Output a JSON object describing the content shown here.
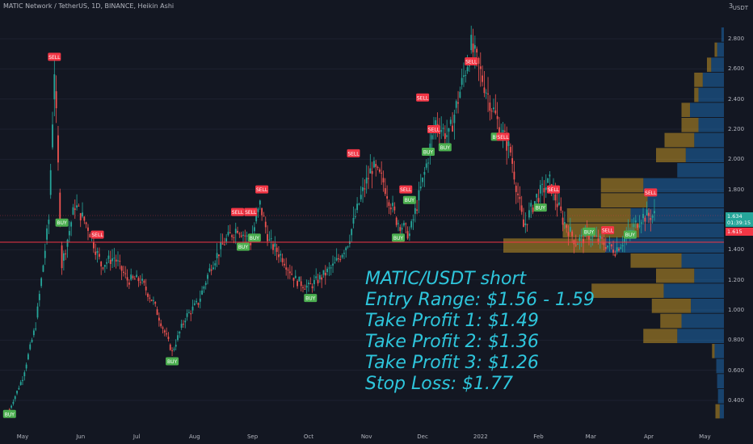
{
  "header": {
    "title": "MATIC Network / TetherUS, 1D, BINANCE, Heikin Ashi",
    "unit": "USDT",
    "top_value": "3"
  },
  "price_axis": {
    "ticks": [
      "2.800",
      "2.600",
      "2.400",
      "2.200",
      "2.000",
      "1.800",
      "1.600",
      "1.400",
      "1.200",
      "1.000",
      "0.800",
      "0.600",
      "0.400"
    ],
    "current_price": "1.634",
    "countdown": "01:39:15",
    "horizontal_level": "1.615"
  },
  "time_axis": {
    "ticks": [
      "May",
      "Jun",
      "Jul",
      "Aug",
      "Sep",
      "Oct",
      "Nov",
      "Dec",
      "2022",
      "Feb",
      "Mar",
      "Apr",
      "May"
    ]
  },
  "annotation": {
    "line1": "MATIC/USDT short",
    "line2": "Entry Range: $1.56 - 1.59",
    "line3": "Take Profit 1: $1.49",
    "line4": "Take Profit 2: $1.36",
    "line5": "Take Profit 3: $1.26",
    "line6": "Stop Loss: $1.77"
  },
  "colors": {
    "background": "#131722",
    "up": "#26a69a",
    "down": "#ef5350",
    "buy_label": "#4caf50",
    "sell_label": "#f23645",
    "vp_up": "#1e6fb8",
    "vp_down": "#d4a024",
    "annotation": "#2ec6dc",
    "level_line": "#f23645"
  },
  "chart_data": {
    "type": "candlestick",
    "title": "MATIC Network / TetherUS, 1D, BINANCE, Heikin Ashi",
    "y_unit": "USDT",
    "ylim": [
      0.25,
      3.0
    ],
    "x_range": [
      "2021-04-20",
      "2022-05-15"
    ],
    "candles_close_approx": [
      [
        "2021-04-24",
        0.34
      ],
      [
        "2021-05-01",
        0.55
      ],
      [
        "2021-05-08",
        0.9
      ],
      [
        "2021-05-15",
        1.6
      ],
      [
        "2021-05-18",
        2.6
      ],
      [
        "2021-05-22",
        1.3
      ],
      [
        "2021-05-29",
        1.7
      ],
      [
        "2021-06-05",
        1.55
      ],
      [
        "2021-06-12",
        1.3
      ],
      [
        "2021-06-19",
        1.35
      ],
      [
        "2021-06-26",
        1.2
      ],
      [
        "2021-07-03",
        1.2
      ],
      [
        "2021-07-10",
        1.05
      ],
      [
        "2021-07-20",
        0.72
      ],
      [
        "2021-07-27",
        0.95
      ],
      [
        "2021-08-03",
        1.05
      ],
      [
        "2021-08-10",
        1.3
      ],
      [
        "2021-08-17",
        1.45
      ],
      [
        "2021-08-24",
        1.55
      ],
      [
        "2021-08-31",
        1.45
      ],
      [
        "2021-09-05",
        1.7
      ],
      [
        "2021-09-10",
        1.45
      ],
      [
        "2021-09-17",
        1.35
      ],
      [
        "2021-09-24",
        1.2
      ],
      [
        "2021-10-01",
        1.15
      ],
      [
        "2021-10-08",
        1.22
      ],
      [
        "2021-10-15",
        1.3
      ],
      [
        "2021-10-22",
        1.45
      ],
      [
        "2021-10-29",
        1.75
      ],
      [
        "2021-11-04",
        1.95
      ],
      [
        "2021-11-10",
        1.85
      ],
      [
        "2021-11-17",
        1.6
      ],
      [
        "2021-11-24",
        1.5
      ],
      [
        "2021-12-01",
        1.85
      ],
      [
        "2021-12-08",
        2.25
      ],
      [
        "2021-12-15",
        2.15
      ],
      [
        "2021-12-22",
        2.5
      ],
      [
        "2021-12-27",
        2.75
      ],
      [
        "2022-01-03",
        2.5
      ],
      [
        "2022-01-10",
        2.25
      ],
      [
        "2022-01-17",
        2.05
      ],
      [
        "2022-01-24",
        1.55
      ],
      [
        "2022-01-31",
        1.75
      ],
      [
        "2022-02-07",
        1.85
      ],
      [
        "2022-02-14",
        1.6
      ],
      [
        "2022-02-21",
        1.45
      ],
      [
        "2022-02-28",
        1.5
      ],
      [
        "2022-03-07",
        1.45
      ],
      [
        "2022-03-14",
        1.4
      ],
      [
        "2022-03-21",
        1.5
      ],
      [
        "2022-03-28",
        1.62
      ],
      [
        "2022-04-04",
        1.63
      ]
    ],
    "signals": [
      {
        "type": "BUY",
        "date": "2021-04-24",
        "price": 0.31
      },
      {
        "type": "SELL",
        "date": "2021-05-18",
        "price": 2.68
      },
      {
        "type": "BUY",
        "date": "2021-05-22",
        "price": 1.58
      },
      {
        "type": "SELL",
        "date": "2021-06-10",
        "price": 1.5
      },
      {
        "type": "BUY",
        "date": "2021-07-20",
        "price": 0.66
      },
      {
        "type": "SELL",
        "date": "2021-08-24",
        "price": 1.65
      },
      {
        "type": "BUY",
        "date": "2021-08-27",
        "price": 1.42
      },
      {
        "type": "SELL",
        "date": "2021-08-31",
        "price": 1.65
      },
      {
        "type": "BUY",
        "date": "2021-09-02",
        "price": 1.48
      },
      {
        "type": "SELL",
        "date": "2021-09-06",
        "price": 1.8
      },
      {
        "type": "BUY",
        "date": "2021-10-02",
        "price": 1.08
      },
      {
        "type": "SELL",
        "date": "2021-10-25",
        "price": 2.04
      },
      {
        "type": "BUY",
        "date": "2021-11-18",
        "price": 1.48
      },
      {
        "type": "SELL",
        "date": "2021-11-22",
        "price": 1.8
      },
      {
        "type": "BUY",
        "date": "2021-11-24",
        "price": 1.73
      },
      {
        "type": "SELL",
        "date": "2021-12-01",
        "price": 2.41
      },
      {
        "type": "BUY",
        "date": "2021-12-04",
        "price": 2.05
      },
      {
        "type": "SELL",
        "date": "2021-12-07",
        "price": 2.2
      },
      {
        "type": "BUY",
        "date": "2021-12-13",
        "price": 2.08
      },
      {
        "type": "SELL",
        "date": "2021-12-27",
        "price": 2.65
      },
      {
        "type": "BUY",
        "date": "2022-01-10",
        "price": 2.15
      },
      {
        "type": "SELL",
        "date": "2022-01-13",
        "price": 2.15
      },
      {
        "type": "BUY",
        "date": "2022-02-02",
        "price": 1.68
      },
      {
        "type": "SELL",
        "date": "2022-02-09",
        "price": 1.8
      },
      {
        "type": "BUY",
        "date": "2022-02-28",
        "price": 1.52
      },
      {
        "type": "SELL",
        "date": "2022-03-10",
        "price": 1.53
      },
      {
        "type": "BUY",
        "date": "2022-03-22",
        "price": 1.5
      },
      {
        "type": "SELL",
        "date": "2022-04-02",
        "price": 1.78
      }
    ],
    "volume_profile": [
      {
        "price": 0.325,
        "up": 0.05,
        "down": 0.05
      },
      {
        "price": 0.425,
        "up": 0.07,
        "down": 0.0
      },
      {
        "price": 0.525,
        "up": 0.08,
        "down": 0.0
      },
      {
        "price": 0.625,
        "up": 0.09,
        "down": 0.0
      },
      {
        "price": 0.725,
        "up": 0.11,
        "down": 0.03
      },
      {
        "price": 0.825,
        "up": 0.55,
        "down": 0.4
      },
      {
        "price": 0.925,
        "up": 0.5,
        "down": 0.25
      },
      {
        "price": 1.025,
        "up": 0.39,
        "down": 0.46
      },
      {
        "price": 1.125,
        "up": 0.71,
        "down": 0.85
      },
      {
        "price": 1.225,
        "up": 0.35,
        "down": 0.45
      },
      {
        "price": 1.325,
        "up": 0.5,
        "down": 0.6
      },
      {
        "price": 1.425,
        "up": 1.4,
        "down": 1.2
      },
      {
        "price": 1.525,
        "up": 1.0,
        "down": 0.9
      },
      {
        "price": 1.625,
        "up": 1.1,
        "down": 0.75
      },
      {
        "price": 1.725,
        "up": 0.9,
        "down": 0.55
      },
      {
        "price": 1.825,
        "up": 0.95,
        "down": 0.5
      },
      {
        "price": 1.925,
        "up": 0.55,
        "down": 0.0
      },
      {
        "price": 2.025,
        "up": 0.45,
        "down": 0.35
      },
      {
        "price": 2.125,
        "up": 0.35,
        "down": 0.35
      },
      {
        "price": 2.225,
        "up": 0.3,
        "down": 0.2
      },
      {
        "price": 2.325,
        "up": 0.4,
        "down": 0.1
      },
      {
        "price": 2.425,
        "up": 0.3,
        "down": 0.05
      },
      {
        "price": 2.525,
        "up": 0.25,
        "down": 0.1
      },
      {
        "price": 2.625,
        "up": 0.15,
        "down": 0.05
      },
      {
        "price": 2.725,
        "up": 0.08,
        "down": 0.03
      },
      {
        "price": 2.825,
        "up": 0.03,
        "down": 0.0
      }
    ],
    "level_line_price": 1.615,
    "current_price": 1.634
  }
}
